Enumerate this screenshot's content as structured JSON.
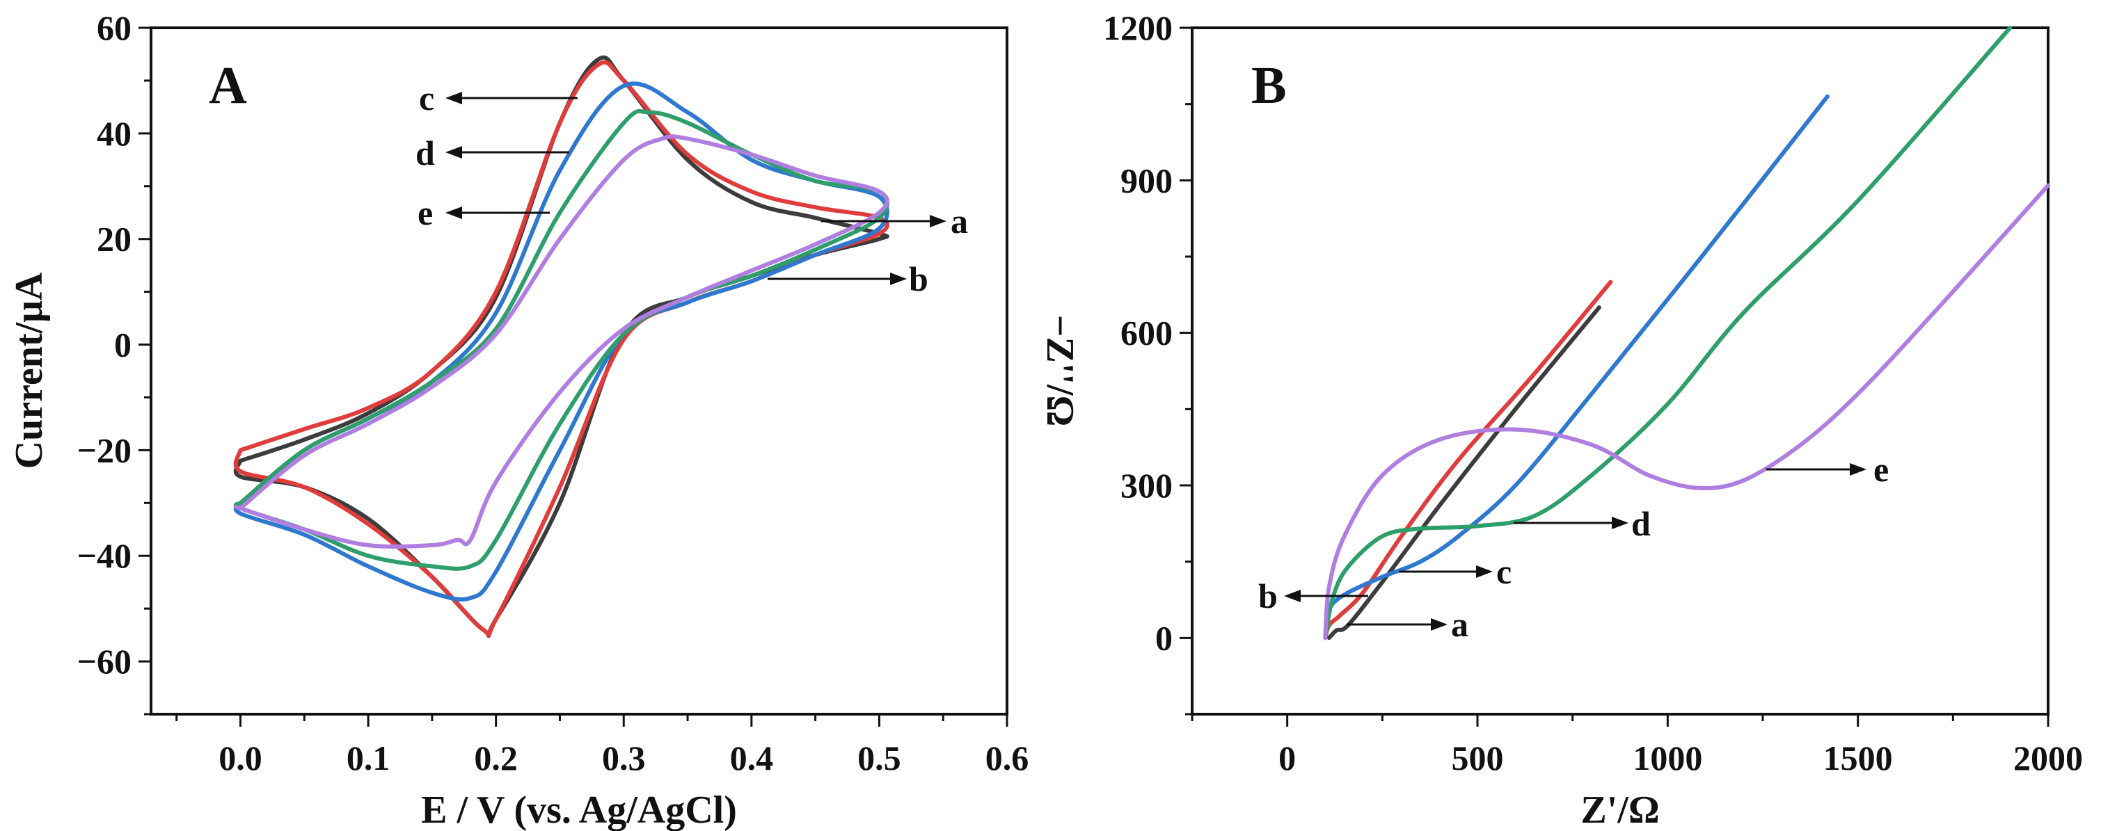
{
  "chart_data": [
    {
      "type": "line",
      "panel_label": "A",
      "xlabel": "E / V (vs. Ag/AgCl)",
      "ylabel": "Current/μA",
      "xlim": [
        -0.07,
        0.6
      ],
      "ylim": [
        -70,
        60
      ],
      "xticks": [
        0.0,
        0.1,
        0.2,
        0.3,
        0.4,
        0.5,
        0.6
      ],
      "xtick_labels": [
        "0.0",
        "0.1",
        "0.2",
        "0.3",
        "0.4",
        "0.5",
        "0.6"
      ],
      "yticks": [
        60,
        40,
        20,
        0,
        -20,
        -40,
        -60
      ],
      "ytick_labels": [
        "60",
        "40",
        "20",
        "0",
        "−20",
        "−40",
        "−60"
      ],
      "series": [
        {
          "name": "a",
          "color": "#3c3c3c",
          "x": [
            0.0,
            0.05,
            0.1,
            0.15,
            0.2,
            0.25,
            0.28,
            0.3,
            0.35,
            0.4,
            0.45,
            0.5,
            0.5,
            0.45,
            0.4,
            0.35,
            0.3,
            0.25,
            0.2,
            0.19,
            0.15,
            0.1,
            0.05,
            0.0,
            0.0
          ],
          "y": [
            -22,
            -18,
            -13,
            -5,
            9,
            42,
            54,
            50,
            35,
            27,
            24,
            21,
            20,
            17,
            13,
            9,
            2,
            -30,
            -52,
            -54,
            -44,
            -33,
            -27,
            -25,
            -22
          ]
        },
        {
          "name": "b",
          "color": "#e03c3c",
          "x": [
            0.0,
            0.05,
            0.1,
            0.15,
            0.2,
            0.25,
            0.28,
            0.3,
            0.35,
            0.4,
            0.45,
            0.5,
            0.5,
            0.45,
            0.4,
            0.35,
            0.3,
            0.25,
            0.2,
            0.19,
            0.15,
            0.1,
            0.05,
            0.0,
            0.0
          ],
          "y": [
            -20,
            -16,
            -12,
            -5,
            10,
            42,
            53,
            50,
            36,
            29,
            26,
            24,
            21,
            17,
            12,
            8,
            1,
            -27,
            -52,
            -54,
            -44,
            -34,
            -27,
            -24,
            -20
          ]
        },
        {
          "name": "c",
          "color": "#2f78d0",
          "x": [
            0.0,
            0.05,
            0.1,
            0.15,
            0.2,
            0.25,
            0.3,
            0.35,
            0.4,
            0.45,
            0.5,
            0.5,
            0.45,
            0.4,
            0.35,
            0.3,
            0.25,
            0.2,
            0.18,
            0.15,
            0.1,
            0.05,
            0.0,
            0.0
          ],
          "y": [
            -30,
            -20,
            -14,
            -7,
            6,
            33,
            49,
            44,
            35,
            31,
            28,
            22,
            17,
            12,
            8,
            2,
            -20,
            -43,
            -48,
            -47,
            -42,
            -36,
            -32,
            -30
          ]
        },
        {
          "name": "d",
          "color": "#2e9e6b",
          "x": [
            0.0,
            0.05,
            0.1,
            0.15,
            0.2,
            0.25,
            0.3,
            0.32,
            0.35,
            0.4,
            0.45,
            0.5,
            0.5,
            0.45,
            0.4,
            0.35,
            0.3,
            0.25,
            0.2,
            0.18,
            0.15,
            0.1,
            0.05,
            0.0,
            0.0
          ],
          "y": [
            -30,
            -20,
            -14,
            -7,
            3,
            25,
            42,
            44,
            42,
            36,
            31,
            29,
            24,
            18,
            13,
            9,
            2,
            -15,
            -37,
            -42,
            -42,
            -40,
            -35,
            -31,
            -30
          ]
        },
        {
          "name": "e",
          "color": "#b07ee0",
          "x": [
            0.0,
            0.05,
            0.1,
            0.15,
            0.2,
            0.25,
            0.3,
            0.33,
            0.35,
            0.4,
            0.45,
            0.5,
            0.5,
            0.45,
            0.4,
            0.35,
            0.3,
            0.25,
            0.2,
            0.18,
            0.17,
            0.15,
            0.1,
            0.05,
            0.0,
            0.0
          ],
          "y": [
            -31,
            -21,
            -15,
            -8,
            2,
            20,
            35,
            39,
            39,
            36,
            32,
            29,
            25,
            19,
            14,
            9,
            3,
            -9,
            -26,
            -37,
            -37,
            -38,
            -38,
            -35,
            -31,
            -31
          ]
        }
      ],
      "annotations": [
        "a",
        "b",
        "c",
        "d",
        "e"
      ]
    },
    {
      "type": "line",
      "panel_label": "B",
      "xlabel": "Z'/Ω",
      "ylabel": "−Z''/Ω",
      "xlim": [
        -250,
        2000
      ],
      "ylim": [
        -150,
        1200
      ],
      "xticks": [
        0,
        500,
        1000,
        1500,
        2000
      ],
      "xtick_labels": [
        "0",
        "500",
        "1000",
        "1500",
        "2000"
      ],
      "yticks": [
        1200,
        900,
        600,
        300,
        0
      ],
      "ytick_labels": [
        "1200",
        "900",
        "600",
        "300",
        "0"
      ],
      "series": [
        {
          "name": "a",
          "color": "#3c3c3c",
          "x": [
            110,
            130,
            160,
            250,
            400,
            600,
            820
          ],
          "y": [
            0,
            15,
            25,
            110,
            260,
            450,
            650
          ]
        },
        {
          "name": "b",
          "color": "#e03c3c",
          "x": [
            100,
            110,
            140,
            200,
            300,
            450,
            650,
            850
          ],
          "y": [
            0,
            25,
            45,
            90,
            200,
            350,
            520,
            700
          ]
        },
        {
          "name": "c",
          "color": "#2f78d0",
          "x": [
            100,
            110,
            150,
            250,
            350,
            450,
            600,
            800,
            1100,
            1420
          ],
          "y": [
            0,
            55,
            85,
            120,
            150,
            200,
            300,
            480,
            760,
            1065
          ]
        },
        {
          "name": "d",
          "color": "#2e9e6b",
          "x": [
            100,
            120,
            160,
            250,
            350,
            500,
            650,
            800,
            1000,
            1200,
            1500,
            1900
          ],
          "y": [
            0,
            80,
            140,
            200,
            215,
            220,
            240,
            320,
            460,
            640,
            860,
            1200
          ]
        },
        {
          "name": "e",
          "color": "#b07ee0",
          "x": [
            100,
            110,
            150,
            250,
            400,
            600,
            800,
            950,
            1080,
            1200,
            1350,
            1500,
            1700,
            2000
          ],
          "y": [
            0,
            100,
            200,
            320,
            390,
            410,
            380,
            320,
            295,
            310,
            380,
            480,
            640,
            890
          ]
        }
      ],
      "annotations": [
        "a",
        "b",
        "c",
        "d",
        "e"
      ]
    }
  ]
}
